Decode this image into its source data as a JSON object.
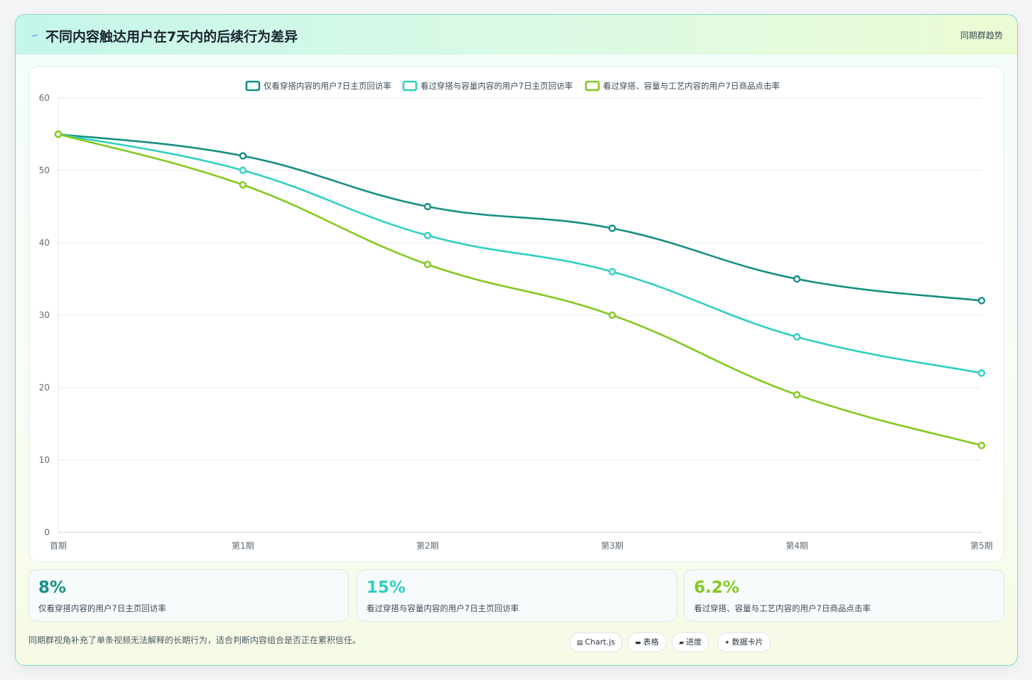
{
  "header": {
    "icon": "lightning-icon",
    "title": "不同内容触达用户在7天内的后续行为差异",
    "tag": "同期群趋势"
  },
  "chart_data": {
    "type": "line",
    "categories": [
      "首期",
      "第1期",
      "第2期",
      "第3期",
      "第4期",
      "第5期"
    ],
    "series": [
      {
        "name": "仅看穿搭内容的用户7日主页回访率",
        "color": "#148f82",
        "values": [
          55,
          52,
          45,
          42,
          35,
          32
        ]
      },
      {
        "name": "看过穿搭与容量内容的用户7日主页回访率",
        "color": "#2fd1c0",
        "values": [
          55,
          50,
          41,
          36,
          27,
          22
        ]
      },
      {
        "name": "看过穿搭、容量与工艺内容的用户7日商品点击率",
        "color": "#82c91e",
        "values": [
          55,
          48,
          37,
          30,
          19,
          12
        ]
      }
    ],
    "ylim": [
      0,
      60
    ],
    "yticks": [
      0,
      10,
      20,
      30,
      40,
      50,
      60
    ],
    "grid": true,
    "legend": "top-center",
    "curve": "smooth"
  },
  "stats": [
    {
      "value": "8%",
      "label": "仅看穿搭内容的用户7日主页回访率",
      "color": "#148f82"
    },
    {
      "value": "15%",
      "label": "看过穿搭与容量内容的用户7日主页回访率",
      "color": "#2fd1c0"
    },
    {
      "value": "6.2%",
      "label": "看过穿搭、容量与工艺内容的用户7日商品点击率",
      "color": "#82c91e"
    }
  ],
  "footnote": "同期群视角补充了单条视频无法解释的长期行为，适合判断内容组合是否正在累积信任。",
  "chips": [
    {
      "icon": "chart-icon",
      "glyph": "▤",
      "label": "Chart.js"
    },
    {
      "icon": "table-icon",
      "glyph": "▬",
      "label": "表格"
    },
    {
      "icon": "progress-icon",
      "glyph": "▰",
      "label": "进度"
    },
    {
      "icon": "sparkle-icon",
      "glyph": "✦",
      "label": "数据卡片"
    }
  ]
}
